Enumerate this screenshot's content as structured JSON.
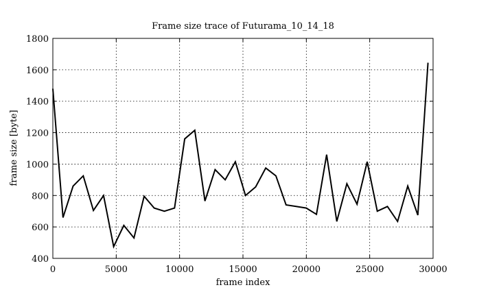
{
  "chart_data": {
    "type": "line",
    "title": "Frame size trace of Futurama_10_14_18",
    "xlabel": "frame index",
    "ylabel": "frame size [byte]",
    "xlim": [
      0,
      30000
    ],
    "ylim": [
      400,
      1800
    ],
    "xticks": [
      0,
      5000,
      10000,
      15000,
      20000,
      25000,
      30000
    ],
    "yticks": [
      400,
      600,
      800,
      1000,
      1200,
      1400,
      1600,
      1800
    ],
    "xtick_labels": [
      "0",
      "5000",
      "10000",
      "15000",
      "20000",
      "25000",
      "30000"
    ],
    "ytick_labels": [
      "400",
      "600",
      "800",
      "1000",
      "1200",
      "1400",
      "1600",
      "1800"
    ],
    "grid": true,
    "legend": "none",
    "line_color": "#000000",
    "series": [
      {
        "x": [
          0,
          800,
          1600,
          2400,
          3200,
          4000,
          4800,
          5600,
          6400,
          7200,
          8000,
          8800,
          9600,
          10400,
          11200,
          12000,
          12800,
          13600,
          14400,
          15200,
          16000,
          16800,
          17600,
          18400,
          19200,
          20000,
          20800,
          21600,
          22400,
          23200,
          24000,
          24800,
          25600,
          26400,
          27200,
          28000,
          28800,
          29600
        ],
        "y": [
          1480,
          660,
          860,
          925,
          705,
          800,
          475,
          610,
          530,
          795,
          720,
          700,
          720,
          1160,
          1215,
          765,
          965,
          900,
          1015,
          800,
          855,
          975,
          925,
          740,
          730,
          720,
          680,
          1060,
          635,
          875,
          745,
          1015,
          700,
          730,
          635,
          860,
          675,
          1645
        ]
      }
    ]
  }
}
